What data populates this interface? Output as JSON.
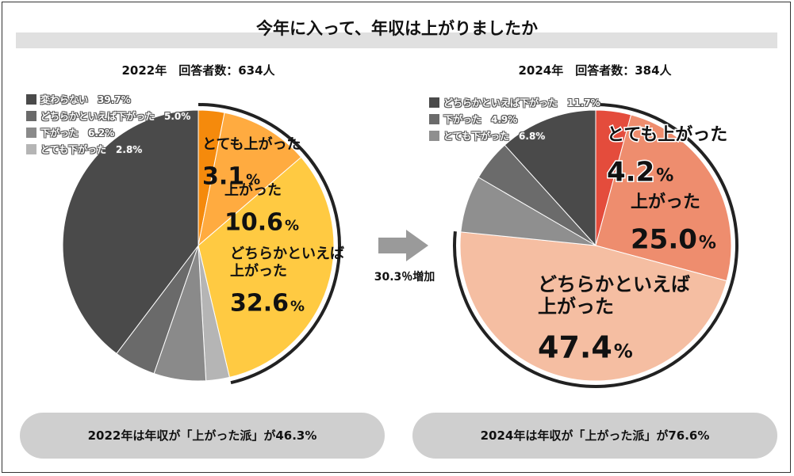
{
  "title": "今年に入って、年収は上がりましたか",
  "arrow_label": "30.3％増加",
  "chart_data": [
    {
      "type": "pie",
      "title": "2022年　回答者数：634人",
      "slices": [
        {
          "label": "とても上がった",
          "value": 3.1,
          "value_text": "3.1",
          "color": "#f58a0c",
          "group": "up"
        },
        {
          "label": "上がった",
          "value": 10.6,
          "value_text": "10.6",
          "color": "#ffab40",
          "group": "up"
        },
        {
          "label": "どちらかといえば上がった",
          "value": 32.6,
          "value_text": "32.6",
          "color": "#ffca42",
          "group": "up"
        },
        {
          "label": "とても下がった",
          "value": 2.8,
          "value_text": "2.8%",
          "color": "#b5b5b5",
          "group": "down"
        },
        {
          "label": "下がった",
          "value": 6.2,
          "value_text": "6.2%",
          "color": "#8a8a8a",
          "group": "down"
        },
        {
          "label": "どちらかといえば下がった",
          "value": 5.0,
          "value_text": "5.0%",
          "color": "#6a6a6a",
          "group": "down"
        },
        {
          "label": "変わらない",
          "value": 39.7,
          "value_text": "39.7%",
          "color": "#4a4a4a",
          "group": "down"
        }
      ],
      "summary": "2022年は年収が「上がった派」が46.3%"
    },
    {
      "type": "pie",
      "title": "2024年　回答者数：384人",
      "slices": [
        {
          "label": "とても上がった",
          "value": 4.2,
          "value_text": "4.2",
          "color": "#e44c3c",
          "group": "up"
        },
        {
          "label": "上がった",
          "value": 25.0,
          "value_text": "25.0",
          "color": "#ee8d6e",
          "group": "up"
        },
        {
          "label": "どちらかといえば上がった",
          "value": 47.4,
          "value_text": "47.4",
          "color": "#f5bea2",
          "group": "up"
        },
        {
          "label": "とても下がった",
          "value": 6.8,
          "value_text": "6.8%",
          "color": "#8f8f8f",
          "group": "down"
        },
        {
          "label": "下がった",
          "value": 4.9,
          "value_text": "4.9%",
          "color": "#6b6b6b",
          "group": "down"
        },
        {
          "label": "どちらかといえば下がった",
          "value": 11.7,
          "value_text": "11.7%",
          "color": "#4a4a4a",
          "group": "down"
        }
      ],
      "summary": "2024年は年収が「上がった派」が76.6%"
    }
  ]
}
